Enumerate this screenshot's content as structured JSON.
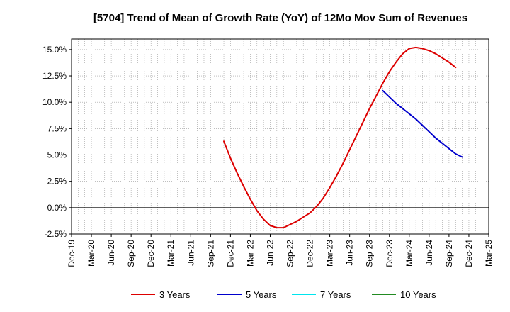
{
  "chart_data": {
    "type": "line",
    "title": "[5704]  Trend of Mean of Growth Rate (YoY) of 12Mo Mov Sum of Revenues",
    "xlabel": "",
    "ylabel": "",
    "ylim": [
      -2.5,
      16
    ],
    "yticks": [
      -2.5,
      0.0,
      2.5,
      5.0,
      7.5,
      10.0,
      12.5,
      15.0
    ],
    "ytick_labels": [
      "-2.5%",
      "0.0%",
      "2.5%",
      "5.0%",
      "7.5%",
      "10.0%",
      "12.5%",
      "15.0%"
    ],
    "x_start": "2019-12",
    "x_end": "2025-03",
    "xtick_labels": [
      "Dec-19",
      "Mar-20",
      "Jun-20",
      "Sep-20",
      "Dec-20",
      "Mar-21",
      "Jun-21",
      "Sep-21",
      "Dec-21",
      "Mar-22",
      "Jun-22",
      "Sep-22",
      "Dec-22",
      "Mar-23",
      "Jun-23",
      "Sep-23",
      "Dec-23",
      "Mar-24",
      "Jun-24",
      "Sep-24",
      "Dec-24",
      "Mar-25"
    ],
    "grid": true,
    "legend_position": "bottom",
    "series": [
      {
        "name": "3 Years",
        "color": "#dd0000",
        "start": "2021-11",
        "values": [
          6.3,
          4.7,
          3.3,
          2.0,
          0.8,
          -0.3,
          -1.1,
          -1.7,
          -1.9,
          -1.9,
          -1.6,
          -1.3,
          -0.9,
          -0.5,
          0.1,
          0.9,
          1.9,
          3.0,
          4.2,
          5.5,
          6.8,
          8.1,
          9.4,
          10.6,
          11.8,
          12.9,
          13.8,
          14.6,
          15.1,
          15.2,
          15.1,
          14.9,
          14.6,
          14.2,
          13.8,
          13.3
        ]
      },
      {
        "name": "5 Years",
        "color": "#0000cc",
        "start": "2023-11",
        "values": [
          11.1,
          10.5,
          9.9,
          9.4,
          8.9,
          8.4,
          7.8,
          7.2,
          6.6,
          6.1,
          5.6,
          5.1,
          4.8
        ]
      },
      {
        "name": "7 Years",
        "color": "#00e5ee",
        "start": "2023-11",
        "values": []
      },
      {
        "name": "10 Years",
        "color": "#228b22",
        "start": "2023-11",
        "values": []
      }
    ]
  }
}
